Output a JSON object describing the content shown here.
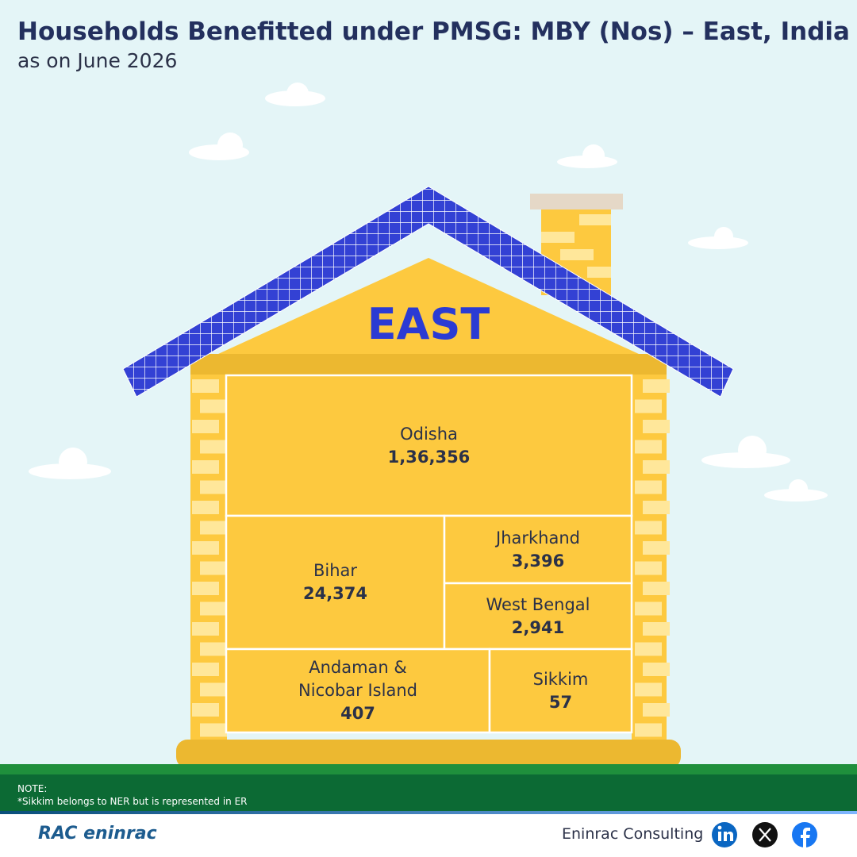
{
  "chart_data": {
    "type": "treemap",
    "title": "Households Benefitted under PMSG: MBY (Nos) – East, India",
    "subtitle": "as on June 2026",
    "group_label": "EAST",
    "categories": [
      "Odisha",
      "Bihar",
      "Jharkhand",
      "West Bengal",
      "Andaman & Nicobar Island",
      "Sikkim"
    ],
    "values": [
      136356,
      24374,
      3396,
      2941,
      407,
      57
    ],
    "value_labels": [
      "1,36,356",
      "24,374",
      "3,396",
      "2,941",
      "407",
      "57"
    ],
    "color": "#fdc93f"
  },
  "note": {
    "heading": "NOTE:",
    "text": "*Sikkim belongs to NER but is represented in ER"
  },
  "footer": {
    "logo": "RAC eninrac",
    "brand": "Eninrac Consulting"
  }
}
